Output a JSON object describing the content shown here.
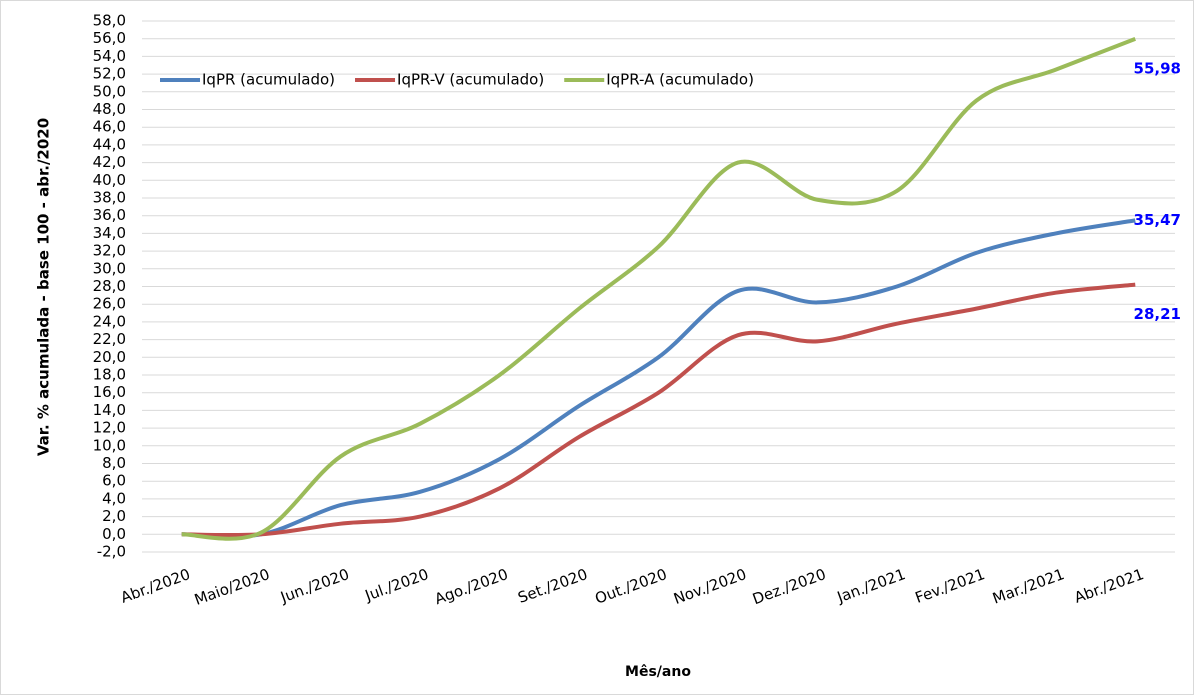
{
  "chart_data": {
    "type": "line",
    "y_label": "Var. % acumulada - base 100 - abr./2020",
    "x_label": "Mês/ano",
    "categories": [
      "Abr./2020",
      "Maio/2020",
      "Jun./2020",
      "Jul./2020",
      "Ago./2020",
      "Set./2020",
      "Out./2020",
      "Nov./2020",
      "Dez./2020",
      "Jan./2021",
      "Fev./2021",
      "Mar./2021",
      "Abr./2021"
    ],
    "series": [
      {
        "name": "IqPR (acumulado)",
        "color": "#4f81bd",
        "values": [
          0,
          0,
          3.3,
          4.8,
          8.5,
          14.5,
          20,
          27.5,
          26.2,
          28,
          31.8,
          34,
          35.47
        ],
        "value_labels": [
          null,
          null,
          null,
          null,
          null,
          null,
          null,
          null,
          null,
          null,
          null,
          null,
          "35,47"
        ]
      },
      {
        "name": "IqPR-V  (acumulado)",
        "color": "#c0504d",
        "values": [
          0,
          0,
          1.2,
          2.0,
          5.2,
          11,
          16,
          22.5,
          21.8,
          23.8,
          25.5,
          27.3,
          28.21
        ],
        "value_labels": [
          null,
          null,
          null,
          null,
          null,
          null,
          null,
          null,
          null,
          null,
          null,
          null,
          "28,21"
        ]
      },
      {
        "name": "IqPR-A  (acumulado)",
        "color": "#9bbb59",
        "values": [
          0,
          0.2,
          8.8,
          12.5,
          18,
          25.5,
          32.5,
          42,
          37.8,
          38.8,
          49,
          52.5,
          55.98
        ],
        "value_labels": [
          null,
          null,
          null,
          null,
          null,
          null,
          null,
          null,
          null,
          null,
          null,
          null,
          "55,98"
        ]
      }
    ],
    "value_label_color": "#0000ff",
    "legend": "top-left",
    "grid": true,
    "ylim": [
      -2,
      58
    ],
    "yticks": [
      {
        "value": -2,
        "label": "-2,0"
      },
      {
        "value": 0,
        "label": "0,0"
      },
      {
        "value": 2,
        "label": "2,0"
      },
      {
        "value": 4,
        "label": "4,0"
      },
      {
        "value": 6,
        "label": "6,0"
      },
      {
        "value": 8,
        "label": "8,0"
      },
      {
        "value": 10,
        "label": "10,0"
      },
      {
        "value": 12,
        "label": "12,0"
      },
      {
        "value": 14,
        "label": "14,0"
      },
      {
        "value": 16,
        "label": "16,0"
      },
      {
        "value": 18,
        "label": "18,0"
      },
      {
        "value": 20,
        "label": "20,0"
      },
      {
        "value": 22,
        "label": "22,0"
      },
      {
        "value": 24,
        "label": "24,0"
      },
      {
        "value": 26,
        "label": "26,0"
      },
      {
        "value": 28,
        "label": "28,0"
      },
      {
        "value": 30,
        "label": "30,0"
      },
      {
        "value": 32,
        "label": "32,0"
      },
      {
        "value": 34,
        "label": "34,0"
      },
      {
        "value": 36,
        "label": "36,0"
      },
      {
        "value": 38,
        "label": "38,0"
      },
      {
        "value": 40,
        "label": "40,0"
      },
      {
        "value": 42,
        "label": "42,0"
      },
      {
        "value": 44,
        "label": "44,0"
      },
      {
        "value": 46,
        "label": "46,0"
      },
      {
        "value": 48,
        "label": "48,0"
      },
      {
        "value": 50,
        "label": "50,0"
      },
      {
        "value": 52,
        "label": "52,0"
      },
      {
        "value": 54,
        "label": "54,0"
      },
      {
        "value": 56,
        "label": "56,0"
      },
      {
        "value": 58,
        "label": "58,0"
      }
    ]
  }
}
